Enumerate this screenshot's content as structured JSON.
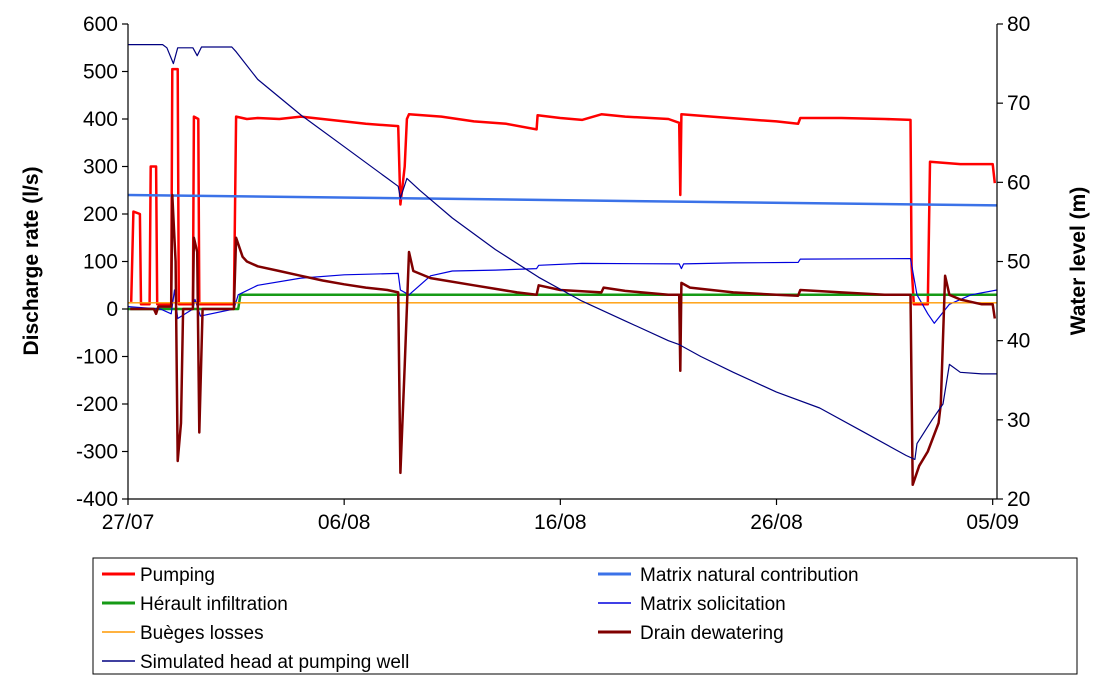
{
  "chart_data": {
    "type": "line",
    "xlabel": "",
    "ylabel": "Discharge rate (l/s)",
    "y2label": "Water level (m)",
    "ylim": [
      -400,
      600
    ],
    "y2lim": [
      20,
      80
    ],
    "yticks": [
      "600",
      "500",
      "400",
      "300",
      "200",
      "100",
      "0",
      "-100",
      "-200",
      "-300",
      "-400"
    ],
    "y2ticks": [
      "80",
      "70",
      "60",
      "50",
      "40",
      "30",
      "20"
    ],
    "xticks": [
      "27/07",
      "06/08",
      "16/08",
      "26/08",
      "05/09"
    ],
    "x_domain_days": [
      0,
      40.2
    ],
    "legend_position": "bottom",
    "series": [
      {
        "name": "Pumping",
        "color": "#ff0000",
        "width": 2.5,
        "axis": "left",
        "points": [
          [
            0.15,
            15
          ],
          [
            0.25,
            205
          ],
          [
            0.55,
            200
          ],
          [
            0.6,
            10
          ],
          [
            1.0,
            10
          ],
          [
            1.05,
            300
          ],
          [
            1.3,
            300
          ],
          [
            1.35,
            10
          ],
          [
            2.0,
            10
          ],
          [
            2.05,
            505
          ],
          [
            2.3,
            505
          ],
          [
            2.35,
            10
          ],
          [
            3.0,
            10
          ],
          [
            3.05,
            405
          ],
          [
            3.25,
            400
          ],
          [
            3.3,
            10
          ],
          [
            4.9,
            10
          ],
          [
            5.0,
            405
          ],
          [
            5.5,
            400
          ],
          [
            6.0,
            402
          ],
          [
            7.0,
            400
          ],
          [
            8.0,
            405
          ],
          [
            10.0,
            395
          ],
          [
            11.0,
            390
          ],
          [
            12.5,
            385
          ],
          [
            12.6,
            220
          ],
          [
            12.8,
            300
          ],
          [
            12.9,
            400
          ],
          [
            13.0,
            410
          ],
          [
            14.5,
            405
          ],
          [
            16.0,
            395
          ],
          [
            17.5,
            390
          ],
          [
            18.9,
            378
          ],
          [
            18.95,
            408
          ],
          [
            20.0,
            402
          ],
          [
            21.0,
            398
          ],
          [
            21.9,
            410
          ],
          [
            23.0,
            405
          ],
          [
            25.0,
            400
          ],
          [
            25.5,
            392
          ],
          [
            25.55,
            240
          ],
          [
            25.6,
            410
          ],
          [
            27.0,
            405
          ],
          [
            29.0,
            398
          ],
          [
            30.0,
            395
          ],
          [
            31.0,
            390
          ],
          [
            31.1,
            402
          ],
          [
            33.0,
            402
          ],
          [
            35.0,
            400
          ],
          [
            36.2,
            398
          ],
          [
            36.25,
            90
          ],
          [
            36.35,
            10
          ],
          [
            37.0,
            10
          ],
          [
            37.1,
            310
          ],
          [
            38.5,
            305
          ],
          [
            40.0,
            305
          ],
          [
            40.1,
            265
          ]
        ]
      },
      {
        "name": "Matrix natural contribution",
        "color": "#3b72e8",
        "width": 2.5,
        "axis": "left",
        "points": [
          [
            0,
            240
          ],
          [
            40.2,
            218
          ]
        ]
      },
      {
        "name": "Hérault infiltration",
        "color": "#169a16",
        "width": 2.5,
        "axis": "left",
        "points": [
          [
            0,
            0
          ],
          [
            5.1,
            0
          ],
          [
            5.2,
            30
          ],
          [
            40.2,
            30
          ]
        ]
      },
      {
        "name": "Matrix solicitation",
        "color": "#0000dd",
        "width": 1.2,
        "axis": "left",
        "points": [
          [
            0,
            5
          ],
          [
            0.6,
            3
          ],
          [
            1.5,
            0
          ],
          [
            2.0,
            -10
          ],
          [
            2.15,
            40
          ],
          [
            2.3,
            -20
          ],
          [
            3.0,
            0
          ],
          [
            3.1,
            20
          ],
          [
            3.35,
            -15
          ],
          [
            4.9,
            0
          ],
          [
            5.1,
            30
          ],
          [
            6.0,
            50
          ],
          [
            8.0,
            65
          ],
          [
            10.0,
            72
          ],
          [
            12.5,
            75
          ],
          [
            12.6,
            40
          ],
          [
            13.0,
            30
          ],
          [
            14.0,
            70
          ],
          [
            15.0,
            80
          ],
          [
            17.0,
            82
          ],
          [
            18.9,
            85
          ],
          [
            19.0,
            92
          ],
          [
            21.0,
            96
          ],
          [
            25.5,
            95
          ],
          [
            25.6,
            85
          ],
          [
            25.7,
            95
          ],
          [
            28.0,
            97
          ],
          [
            31.0,
            98
          ],
          [
            31.1,
            105
          ],
          [
            36.2,
            106
          ],
          [
            36.5,
            30
          ],
          [
            37.0,
            -10
          ],
          [
            37.3,
            -30
          ],
          [
            38.0,
            10
          ],
          [
            39.0,
            30
          ],
          [
            40.2,
            40
          ]
        ]
      },
      {
        "name": "Buèges losses",
        "color": "#ff9900",
        "width": 1.3,
        "axis": "left",
        "points": [
          [
            0,
            13
          ],
          [
            40.2,
            13
          ]
        ]
      },
      {
        "name": "Drain dewatering",
        "color": "#800000",
        "width": 2.5,
        "axis": "left",
        "points": [
          [
            0.1,
            0
          ],
          [
            1.2,
            0
          ],
          [
            1.3,
            -10
          ],
          [
            1.4,
            5
          ],
          [
            2.0,
            5
          ],
          [
            2.05,
            240
          ],
          [
            2.2,
            100
          ],
          [
            2.3,
            -320
          ],
          [
            2.45,
            -240
          ],
          [
            2.55,
            0
          ],
          [
            3.0,
            0
          ],
          [
            3.05,
            150
          ],
          [
            3.2,
            120
          ],
          [
            3.3,
            -260
          ],
          [
            3.45,
            0
          ],
          [
            4.9,
            0
          ],
          [
            5.0,
            150
          ],
          [
            5.3,
            110
          ],
          [
            5.5,
            100
          ],
          [
            6.0,
            90
          ],
          [
            7.0,
            80
          ],
          [
            8.0,
            70
          ],
          [
            9.0,
            60
          ],
          [
            10.0,
            52
          ],
          [
            11.0,
            45
          ],
          [
            12.0,
            40
          ],
          [
            12.5,
            35
          ],
          [
            12.6,
            -345
          ],
          [
            12.8,
            -120
          ],
          [
            13.0,
            120
          ],
          [
            13.2,
            80
          ],
          [
            14.0,
            65
          ],
          [
            16.0,
            50
          ],
          [
            18.0,
            35
          ],
          [
            18.9,
            30
          ],
          [
            19.0,
            50
          ],
          [
            20.0,
            40
          ],
          [
            21.9,
            35
          ],
          [
            22.0,
            45
          ],
          [
            23.0,
            38
          ],
          [
            25.0,
            30
          ],
          [
            25.5,
            30
          ],
          [
            25.55,
            -130
          ],
          [
            25.6,
            55
          ],
          [
            26.0,
            45
          ],
          [
            28.0,
            35
          ],
          [
            30.0,
            30
          ],
          [
            31.0,
            28
          ],
          [
            31.1,
            40
          ],
          [
            33.0,
            35
          ],
          [
            35.0,
            30
          ],
          [
            36.2,
            30
          ],
          [
            36.3,
            -370
          ],
          [
            36.6,
            -330
          ],
          [
            37.0,
            -300
          ],
          [
            37.5,
            -240
          ],
          [
            37.6,
            -200
          ],
          [
            37.8,
            70
          ],
          [
            38.0,
            30
          ],
          [
            38.5,
            20
          ],
          [
            39.5,
            10
          ],
          [
            40.0,
            10
          ],
          [
            40.1,
            -20
          ]
        ]
      },
      {
        "name": "Simulated head at pumping well",
        "color": "#000080",
        "width": 1.2,
        "axis": "right",
        "points": [
          [
            0,
            77.4
          ],
          [
            1.6,
            77.4
          ],
          [
            1.8,
            77
          ],
          [
            2.1,
            75
          ],
          [
            2.3,
            77
          ],
          [
            3.0,
            77
          ],
          [
            3.2,
            76
          ],
          [
            3.4,
            77.1
          ],
          [
            4.8,
            77.1
          ],
          [
            5.0,
            76.5
          ],
          [
            6.0,
            73
          ],
          [
            8.0,
            68.5
          ],
          [
            10.0,
            64.5
          ],
          [
            12.0,
            60.5
          ],
          [
            12.5,
            59.5
          ],
          [
            12.6,
            58
          ],
          [
            12.9,
            60.5
          ],
          [
            13.5,
            59
          ],
          [
            15.0,
            55.5
          ],
          [
            17.0,
            51.5
          ],
          [
            19.0,
            48
          ],
          [
            21.0,
            45
          ],
          [
            23.0,
            42.5
          ],
          [
            25.0,
            40
          ],
          [
            25.5,
            39.5
          ],
          [
            26.5,
            38
          ],
          [
            28.0,
            36
          ],
          [
            30.0,
            33.5
          ],
          [
            32.0,
            31.5
          ],
          [
            34.0,
            28.5
          ],
          [
            36.0,
            25.5
          ],
          [
            36.4,
            25
          ],
          [
            36.5,
            27
          ],
          [
            37.2,
            30
          ],
          [
            37.7,
            32
          ],
          [
            38.0,
            37
          ],
          [
            38.5,
            36
          ],
          [
            39.5,
            35.8
          ],
          [
            40.2,
            35.8
          ]
        ]
      }
    ]
  }
}
